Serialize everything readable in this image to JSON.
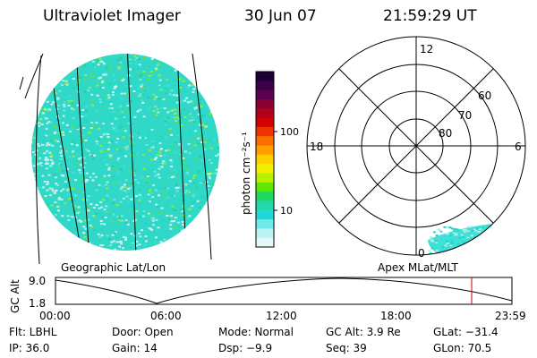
{
  "header": {
    "instrument": "Ultraviolet Imager",
    "date": "30 Jun 07",
    "time": "21:59:29 UT"
  },
  "colorbar": {
    "label": "photon cm⁻²s⁻¹",
    "tick_labels": [
      "100",
      "10"
    ],
    "colors_top_to_bottom": [
      "#1a0033",
      "#3a0048",
      "#5c004f",
      "#8a0030",
      "#b0001a",
      "#d20000",
      "#ee3300",
      "#f87000",
      "#ffa000",
      "#ffd000",
      "#f0f000",
      "#b8f000",
      "#60e800",
      "#20d860",
      "#20d8a8",
      "#20d8d8",
      "#70e8e8",
      "#b8f4f4",
      "#e4f8f8"
    ]
  },
  "left_panel": {
    "label": "Geographic Lat/Lon"
  },
  "right_panel": {
    "label": "Apex MLat/MLT",
    "mlt_labels": {
      "top": "12",
      "left": "18",
      "right": "6",
      "bottom": "0"
    },
    "mlat_labels": [
      "60",
      "70",
      "80"
    ]
  },
  "altitude_plot": {
    "ylabel": "GC Alt",
    "y_ticks": [
      "9.0",
      "1.8"
    ],
    "x_ticks": [
      "00:00",
      "06:00",
      "12:00",
      "18:00",
      "23:59"
    ],
    "marker_color": "#d00000"
  },
  "info": {
    "filter": "Flt: LBHL",
    "door": "Door: Open",
    "mode": "Mode: Normal",
    "gc_alt": "GC Alt: 3.9 Re",
    "glat": "GLat: −31.4",
    "ip": "IP: 36.0",
    "gain": "Gain: 14",
    "dsp": "Dsp:    −9.9",
    "seq": "Seq: 39",
    "glon": "GLon:  70.5"
  }
}
